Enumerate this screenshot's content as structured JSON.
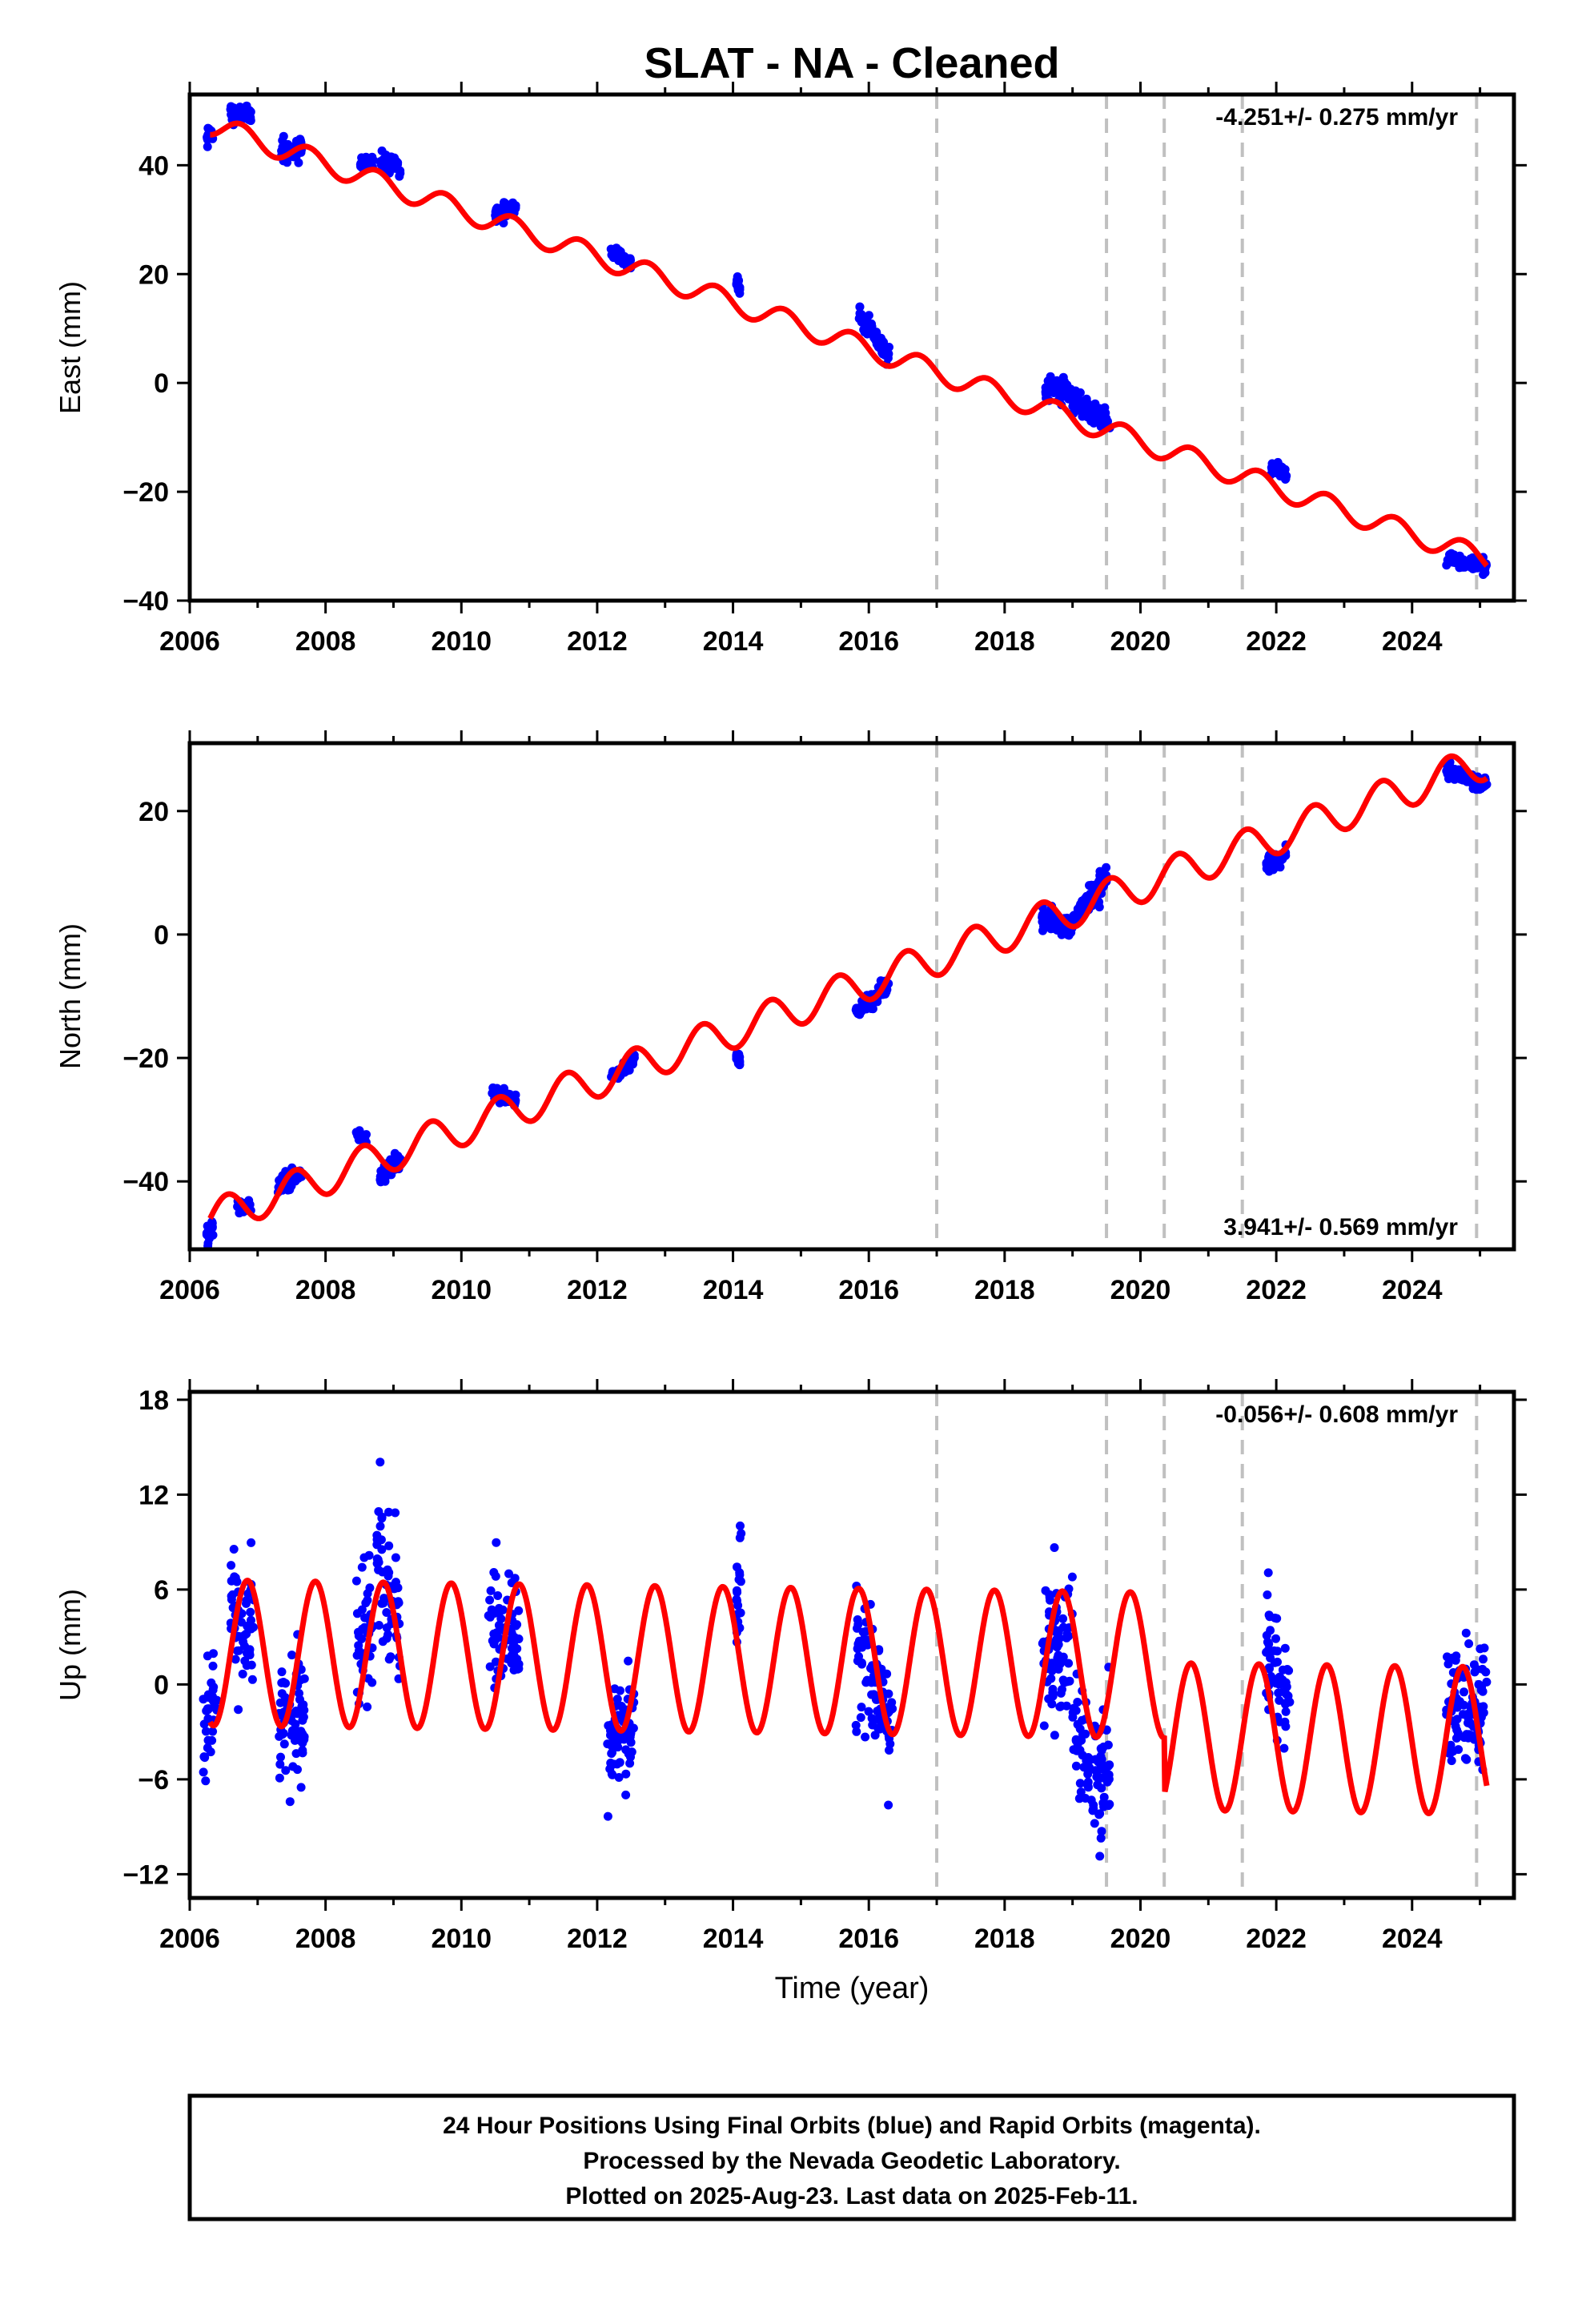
{
  "title": "SLAT  - NA - Cleaned",
  "footer": {
    "lines": [
      "24 Hour Positions Using Final Orbits (blue) and Rapid Orbits (magenta).",
      "Processed by the Nevada Geodetic Laboratory.",
      "Plotted on 2025-Aug-23. Last data on 2025-Feb-11."
    ]
  },
  "colors": {
    "data_points": "#0000ff",
    "model_fit": "#ff0000",
    "event_lines": "#c0c0c0",
    "frame": "#000000"
  },
  "chart_data": [
    {
      "type": "scatter",
      "panel": "east",
      "ylabel": "East (mm)",
      "xlabel": "",
      "xlim": [
        2006.0,
        2025.5
      ],
      "ylim": [
        -40,
        53
      ],
      "xticks": [
        2006,
        2008,
        2010,
        2012,
        2014,
        2016,
        2018,
        2020,
        2022,
        2024
      ],
      "yticks": [
        -40,
        -20,
        0,
        20,
        40
      ],
      "ytick_labels": [
        "−40",
        "−20",
        "0",
        "20",
        "40"
      ],
      "rate_label": "-4.251+/- 0.275 mm/yr",
      "rate_label_position": "top-right",
      "event_lines": [
        2017.0,
        2019.5,
        2020.35,
        2021.5,
        2024.95
      ],
      "model": {
        "intercept": 47.5,
        "rate": -4.251,
        "ref_year": 2006.3,
        "annual_amplitude": 2.0,
        "annual_phase_year": 2006.75
      },
      "series": [
        {
          "kind": "points",
          "clusters": [
            {
              "x": [
                2006.25,
                2006.35
              ],
              "y": [
                45.0,
                46.0
              ],
              "spread": 1.5
            },
            {
              "x": [
                2006.6,
                2006.9
              ],
              "y": [
                49.5,
                49.5
              ],
              "spread": 1.5
            },
            {
              "x": [
                2007.35,
                2007.65
              ],
              "y": [
                42.5,
                43.5
              ],
              "spread": 1.5
            },
            {
              "x": [
                2008.5,
                2008.7
              ],
              "y": [
                40.5,
                40.5
              ],
              "spread": 1.0
            },
            {
              "x": [
                2008.8,
                2009.1
              ],
              "y": [
                41.0,
                39.5
              ],
              "spread": 1.5
            },
            {
              "x": [
                2010.5,
                2010.8
              ],
              "y": [
                31.0,
                32.5
              ],
              "spread": 1.2
            },
            {
              "x": [
                2012.2,
                2012.5
              ],
              "y": [
                24.5,
                22.0
              ],
              "spread": 1.0
            },
            {
              "x": [
                2014.05,
                2014.1
              ],
              "y": [
                19.0,
                17.0
              ],
              "spread": 1.0
            },
            {
              "x": [
                2015.85,
                2016.3
              ],
              "y": [
                12.5,
                5.0
              ],
              "spread": 1.5
            },
            {
              "x": [
                2018.6,
                2019.0
              ],
              "y": [
                -1.0,
                -1.5
              ],
              "spread": 1.8
            },
            {
              "x": [
                2019.0,
                2019.55
              ],
              "y": [
                -3.5,
                -7.5
              ],
              "spread": 1.8
            },
            {
              "x": [
                2021.9,
                2022.15
              ],
              "y": [
                -15.5,
                -16.5
              ],
              "spread": 1.2
            },
            {
              "x": [
                2024.5,
                2025.1
              ],
              "y": [
                -32.0,
                -34.0
              ],
              "spread": 1.2
            }
          ]
        }
      ]
    },
    {
      "type": "scatter",
      "panel": "north",
      "ylabel": "North (mm)",
      "xlabel": "",
      "xlim": [
        2006.0,
        2025.5
      ],
      "ylim": [
        -51,
        31
      ],
      "xticks": [
        2006,
        2008,
        2010,
        2012,
        2014,
        2016,
        2018,
        2020,
        2022,
        2024
      ],
      "yticks": [
        -40,
        -20,
        0,
        20
      ],
      "ytick_labels": [
        "−40",
        "−20",
        "0",
        "20"
      ],
      "rate_label": "3.941+/- 0.569 mm/yr",
      "rate_label_position": "bottom-right",
      "event_lines": [
        2017.0,
        2019.5,
        2020.35,
        2021.5,
        2024.95
      ],
      "model": {
        "intercept": -46.0,
        "rate": 3.941,
        "ref_year": 2006.3,
        "annual_amplitude": 2.9,
        "annual_phase_year": 2006.55
      },
      "series": [
        {
          "kind": "points",
          "clusters": [
            {
              "x": [
                2006.25,
                2006.35
              ],
              "y": [
                -48.5,
                -47.0
              ],
              "spread": 1.5
            },
            {
              "x": [
                2006.7,
                2006.9
              ],
              "y": [
                -44.0,
                -44.0
              ],
              "spread": 1.0
            },
            {
              "x": [
                2007.3,
                2007.65
              ],
              "y": [
                -40.5,
                -38.5
              ],
              "spread": 1.2
            },
            {
              "x": [
                2008.45,
                2008.6
              ],
              "y": [
                -32.0,
                -33.0
              ],
              "spread": 0.8
            },
            {
              "x": [
                2008.8,
                2009.1
              ],
              "y": [
                -39.0,
                -36.5
              ],
              "spread": 1.5
            },
            {
              "x": [
                2010.45,
                2010.8
              ],
              "y": [
                -25.5,
                -27.0
              ],
              "spread": 1.0
            },
            {
              "x": [
                2012.2,
                2012.55
              ],
              "y": [
                -23.5,
                -20.0
              ],
              "spread": 1.0
            },
            {
              "x": [
                2014.05,
                2014.1
              ],
              "y": [
                -19.5,
                -20.5
              ],
              "spread": 1.0
            },
            {
              "x": [
                2015.8,
                2016.3
              ],
              "y": [
                -12.5,
                -8.0
              ],
              "spread": 1.2
            },
            {
              "x": [
                2018.55,
                2019.0
              ],
              "y": [
                3.0,
                0.5
              ],
              "spread": 1.6
            },
            {
              "x": [
                2019.0,
                2019.5
              ],
              "y": [
                2.0,
                9.5
              ],
              "spread": 1.6
            },
            {
              "x": [
                2021.85,
                2022.15
              ],
              "y": [
                11.0,
                13.0
              ],
              "spread": 1.2
            },
            {
              "x": [
                2024.5,
                2025.1
              ],
              "y": [
                27.0,
                24.0
              ],
              "spread": 1.2
            }
          ]
        }
      ]
    },
    {
      "type": "scatter",
      "panel": "up",
      "ylabel": "Up (mm)",
      "xlabel": "Time (year)",
      "xlim": [
        2006.0,
        2025.5
      ],
      "ylim": [
        -13.5,
        18.5
      ],
      "xticks": [
        2006,
        2008,
        2010,
        2012,
        2014,
        2016,
        2018,
        2020,
        2022,
        2024
      ],
      "yticks": [
        -12,
        -6,
        0,
        6,
        12,
        18
      ],
      "ytick_labels": [
        "−12",
        "−6",
        "0",
        "6",
        "12",
        "18"
      ],
      "rate_label": "-0.056+/- 0.608 mm/yr",
      "rate_label_position": "top-right",
      "event_lines": [
        2017.0,
        2019.5,
        2020.35,
        2021.5,
        2024.95
      ],
      "model": {
        "intercept": 2.0,
        "rate": -0.056,
        "ref_year": 2006.3,
        "annual_amplitude": 4.6,
        "annual_phase_year": 2006.85,
        "after_2020_35_offset": -4.5
      },
      "series": [
        {
          "kind": "points",
          "clusters": [
            {
              "x": [
                2006.2,
                2006.4
              ],
              "y": [
                -3.0,
                -1.0
              ],
              "spread": 3.5
            },
            {
              "x": [
                2006.6,
                2006.95
              ],
              "y": [
                5.0,
                3.0
              ],
              "spread": 3.0
            },
            {
              "x": [
                2007.3,
                2007.7
              ],
              "y": [
                -3.0,
                -1.0
              ],
              "spread": 3.5
            },
            {
              "x": [
                2008.45,
                2008.7
              ],
              "y": [
                3.0,
                4.0
              ],
              "spread": 4.0
            },
            {
              "x": [
                2008.75,
                2009.1
              ],
              "y": [
                7.0,
                3.5
              ],
              "spread": 4.5
            },
            {
              "x": [
                2010.4,
                2010.85
              ],
              "y": [
                3.5,
                3.0
              ],
              "spread": 3.5
            },
            {
              "x": [
                2012.15,
                2012.55
              ],
              "y": [
                -3.5,
                -2.5
              ],
              "spread": 3.5
            },
            {
              "x": [
                2014.05,
                2014.12
              ],
              "y": [
                4.0,
                8.0
              ],
              "spread": 3.0
            },
            {
              "x": [
                2015.8,
                2016.35
              ],
              "y": [
                2.0,
                -3.0
              ],
              "spread": 4.0
            },
            {
              "x": [
                2018.55,
                2019.0
              ],
              "y": [
                3.0,
                2.5
              ],
              "spread": 4.0
            },
            {
              "x": [
                2019.0,
                2019.55
              ],
              "y": [
                -3.0,
                -6.0
              ],
              "spread": 4.0
            },
            {
              "x": [
                2021.85,
                2022.2
              ],
              "y": [
                3.0,
                -2.0
              ],
              "spread": 3.5
            },
            {
              "x": [
                2024.5,
                2025.1
              ],
              "y": [
                -2.0,
                -1.5
              ],
              "spread": 4.0
            }
          ]
        }
      ]
    }
  ]
}
